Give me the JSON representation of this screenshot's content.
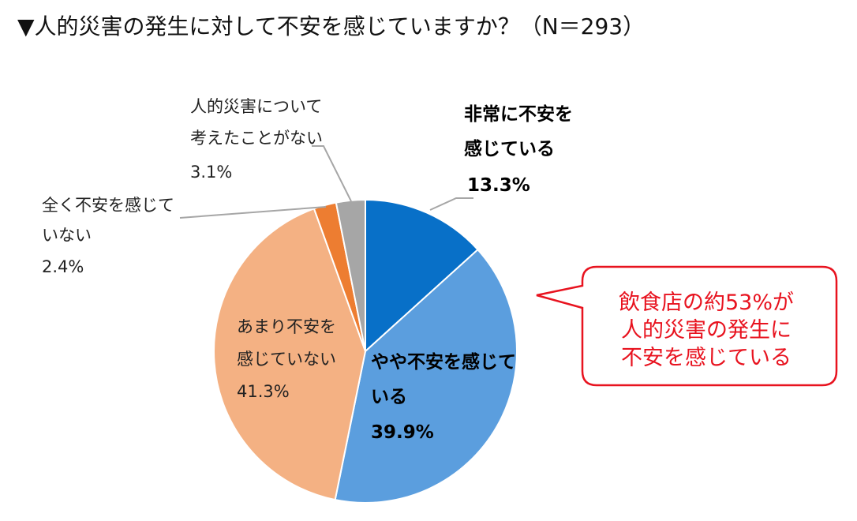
{
  "title": "▼人的災害の発生に対して不安を感じていますか？（N＝293）",
  "chart_data": {
    "type": "pie",
    "title": "▼人的災害の発生に対して不安を感じていますか？（N＝293）",
    "n": 293,
    "slices": [
      {
        "id": "s1",
        "label_lines": [
          "非常に不安を",
          "感じている"
        ],
        "pct_text": "13.3%",
        "value": 13.3,
        "color": "#0870c8",
        "bold": true
      },
      {
        "id": "s2",
        "label_lines": [
          "やや不安を感じて",
          "いる"
        ],
        "pct_text": "39.9%",
        "value": 39.9,
        "color": "#5b9ede",
        "bold": true
      },
      {
        "id": "s3",
        "label_lines": [
          "あまり不安を",
          "感じていない"
        ],
        "pct_text": "41.3%",
        "value": 41.3,
        "color": "#f4b183",
        "bold": false
      },
      {
        "id": "s4",
        "label_lines": [
          "全く不安を感じて",
          "いない"
        ],
        "pct_text": "2.4%",
        "value": 2.4,
        "color": "#ed7d31",
        "bold": false
      },
      {
        "id": "s5",
        "label_lines": [
          "人的災害について",
          "考えたことがない"
        ],
        "pct_text": "3.1%",
        "value": 3.1,
        "color": "#a6a6a6",
        "bold": false
      }
    ]
  },
  "callout": {
    "lines": [
      "飲食店の約53%が",
      "人的災害の発生に",
      "不安を感じている"
    ],
    "border_color": "#e8131f",
    "text_color": "#e8131f"
  }
}
